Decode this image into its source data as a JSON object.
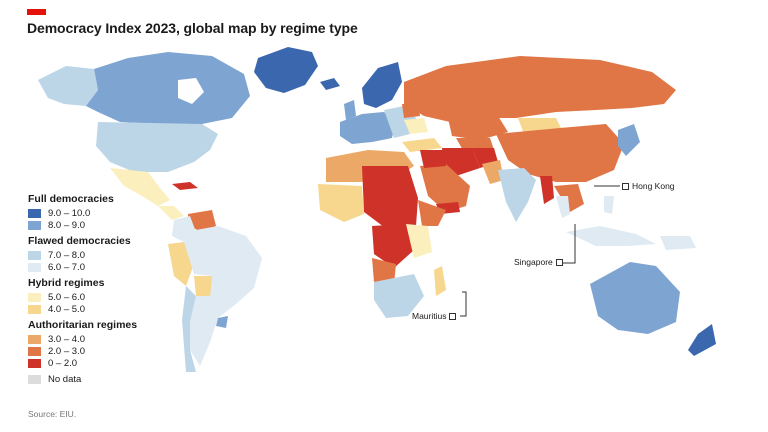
{
  "header": {
    "title": "Democracy Index 2023, global map by regime type",
    "brand_color": "#e3120b"
  },
  "legend": {
    "groups": [
      {
        "heading": "Full democracies",
        "items": [
          {
            "range": "9.0 – 10.0",
            "color": "#3a67ad"
          },
          {
            "range": "8.0 – 9.0",
            "color": "#7ea4d2"
          }
        ]
      },
      {
        "heading": "Flawed democracies",
        "items": [
          {
            "range": "7.0 – 8.0",
            "color": "#bcd6e8"
          },
          {
            "range": "6.0 – 7.0",
            "color": "#dfeaf3"
          }
        ]
      },
      {
        "heading": "Hybrid regimes",
        "items": [
          {
            "range": "5.0 – 6.0",
            "color": "#fbefbd"
          },
          {
            "range": "4.0 – 5.0",
            "color": "#f7d68e"
          }
        ]
      },
      {
        "heading": "Authoritarian regimes",
        "items": [
          {
            "range": "3.0 – 4.0",
            "color": "#eca866"
          },
          {
            "range": "2.0 – 3.0",
            "color": "#e07545"
          },
          {
            "range": "0 – 2.0",
            "color": "#cf3228"
          }
        ]
      }
    ],
    "no_data": {
      "label": "No data",
      "color": "#dcdcdc"
    }
  },
  "callouts": {
    "hong_kong": "Hong Kong",
    "singapore": "Singapore",
    "mauritius": "Mauritius"
  },
  "source": "Source: EIU."
}
